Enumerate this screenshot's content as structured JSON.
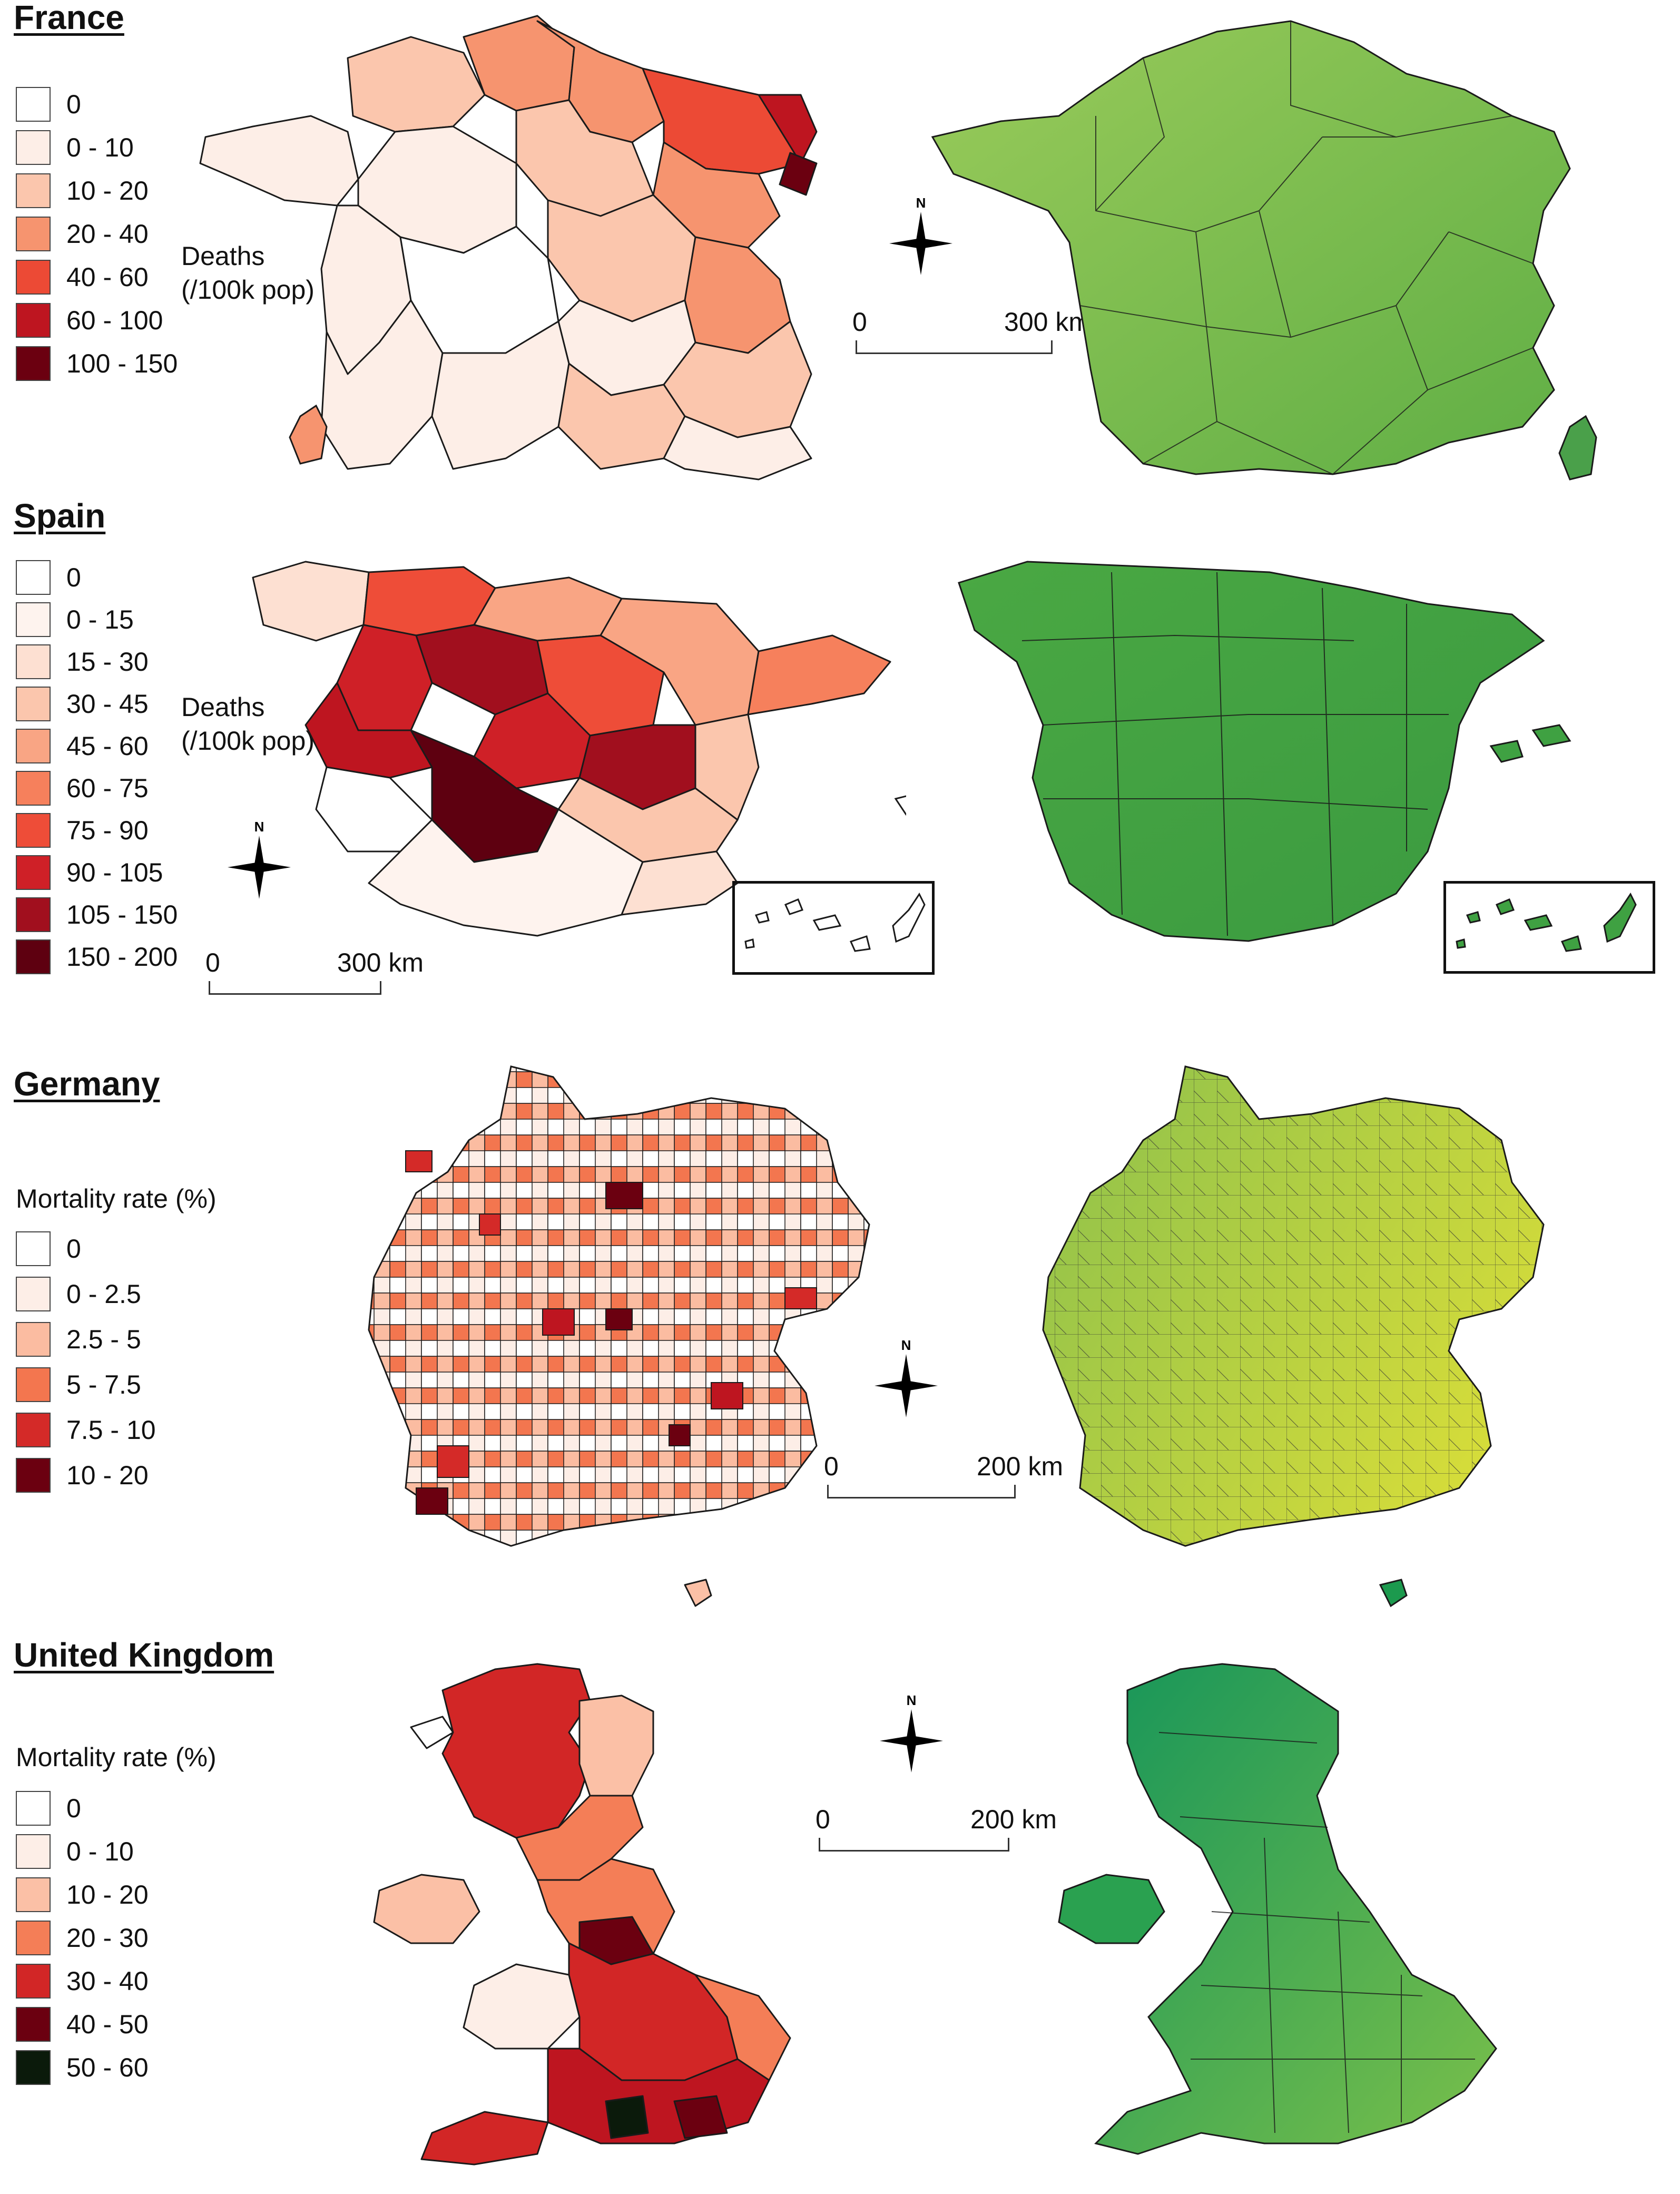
{
  "colors": {
    "red_ramp_0": "#ffffff",
    "red_ramp_1": "#fdeee7",
    "red_ramp_2": "#fbc6ad",
    "red_ramp_3": "#f6946f",
    "red_ramp_4": "#ec4a35",
    "red_ramp_5": "#be1520",
    "red_ramp_6": "#6b0010",
    "dark_top": "#0b1a0b",
    "green_fr": "#7cc04e",
    "green_es": "#3fa142",
    "green_de": "#b8d23c",
    "green_uk": "#1c9a4e",
    "border": "#1a1a1a"
  },
  "panels": [
    {
      "id": "france",
      "title": "France",
      "side_label_line1": "Deaths",
      "side_label_line2": "(/100k pop)",
      "legend": [
        {
          "label": "0",
          "color": "#ffffff"
        },
        {
          "label": "0 - 10",
          "color": "#fdeee7"
        },
        {
          "label": "10 - 20",
          "color": "#fbc6ad"
        },
        {
          "label": "20 - 40",
          "color": "#f6946f"
        },
        {
          "label": "40 - 60",
          "color": "#ec4a35"
        },
        {
          "label": "60 - 100",
          "color": "#be1520"
        },
        {
          "label": "100 - 150",
          "color": "#6b0010"
        }
      ],
      "scale_start": "0",
      "scale_end": "300 km",
      "north": "N"
    },
    {
      "id": "spain",
      "title": "Spain",
      "side_label_line1": "Deaths",
      "side_label_line2": "(/100k pop)",
      "legend": [
        {
          "label": "0",
          "color": "#ffffff"
        },
        {
          "label": "0 - 15",
          "color": "#fef3ee"
        },
        {
          "label": "15 - 30",
          "color": "#fde0d2"
        },
        {
          "label": "30 - 45",
          "color": "#fbc6ad"
        },
        {
          "label": "45 - 60",
          "color": "#f9a584"
        },
        {
          "label": "60 - 75",
          "color": "#f6805c"
        },
        {
          "label": "75 - 90",
          "color": "#ee4d38"
        },
        {
          "label": "90 - 105",
          "color": "#cf2027"
        },
        {
          "label": "105 - 150",
          "color": "#a10f1e"
        },
        {
          "label": "150 - 200",
          "color": "#5e0010"
        }
      ],
      "scale_start": "0",
      "scale_end": "300 km",
      "north": "N"
    },
    {
      "id": "germany",
      "title": "Germany",
      "legend_title": "Mortality rate (%)",
      "legend": [
        {
          "label": "0",
          "color": "#ffffff"
        },
        {
          "label": "0 - 2.5",
          "color": "#fdeee7"
        },
        {
          "label": "2.5 - 5",
          "color": "#fbbca1"
        },
        {
          "label": "5 - 7.5",
          "color": "#f3764f"
        },
        {
          "label": "7.5 - 10",
          "color": "#d42a28"
        },
        {
          "label": "10 - 20",
          "color": "#6b0010"
        }
      ],
      "scale_start": "0",
      "scale_end": "200 km",
      "north": "N"
    },
    {
      "id": "uk",
      "title": "United Kingdom",
      "legend_title": "Mortality rate (%)",
      "legend": [
        {
          "label": "0",
          "color": "#ffffff"
        },
        {
          "label": "0 - 10",
          "color": "#fdeee7"
        },
        {
          "label": "10 - 20",
          "color": "#fbc0a6"
        },
        {
          "label": "20 - 30",
          "color": "#f47e57"
        },
        {
          "label": "30 - 40",
          "color": "#d22626"
        },
        {
          "label": "40 - 50",
          "color": "#6b0010"
        },
        {
          "label": "50 - 60",
          "color": "#0b1a0b"
        }
      ],
      "scale_start": "0",
      "scale_end": "200 km",
      "north": "N"
    }
  ]
}
